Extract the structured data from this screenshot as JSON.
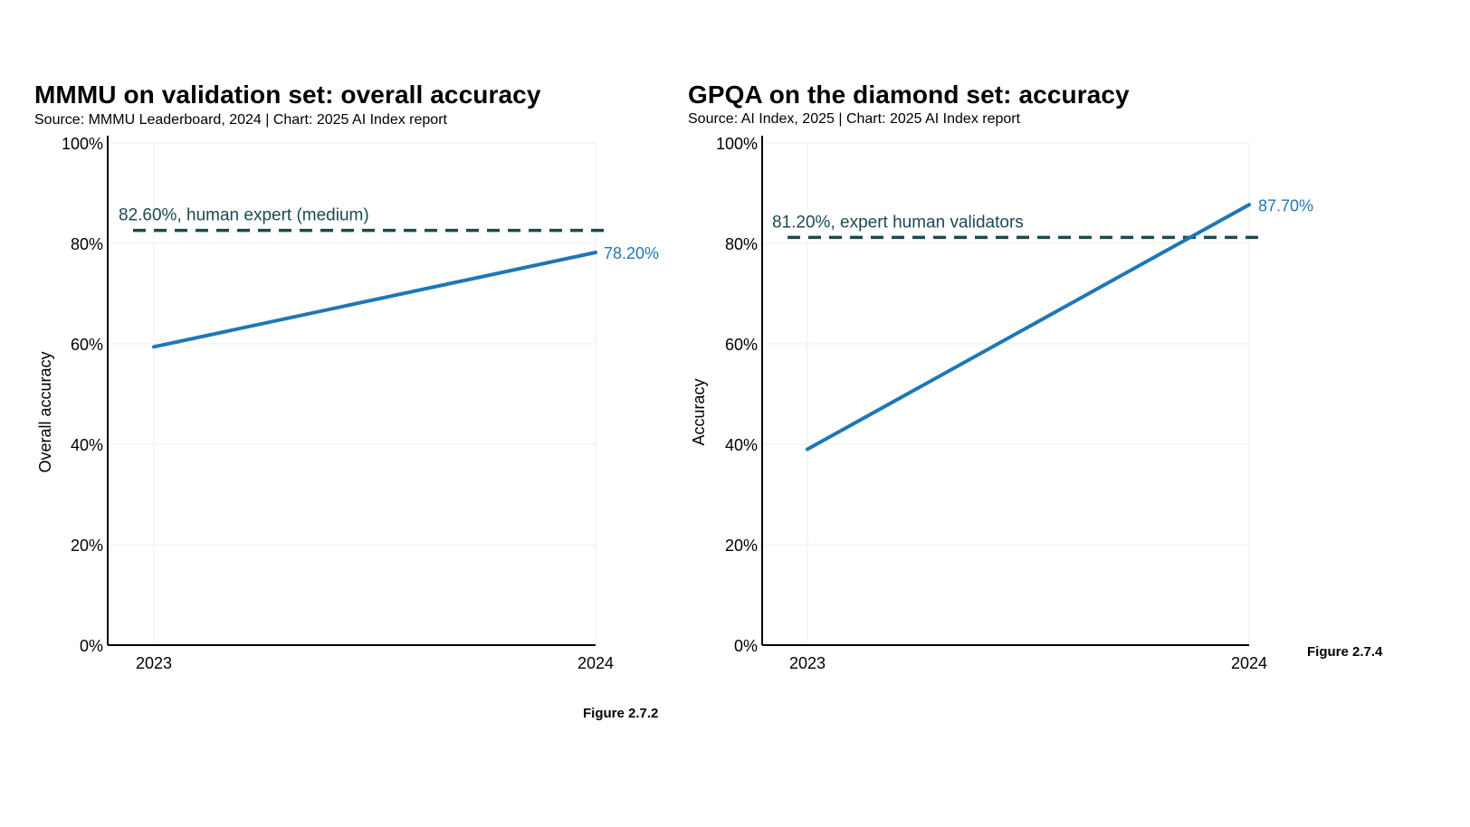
{
  "charts": [
    {
      "title": "MMMU on validation set: overall accuracy",
      "subtitle": "Source: MMMU Leaderboard, 2024 | Chart: 2025 AI Index report",
      "figure_label": "Figure 2.7.2"
    },
    {
      "title": "GPQA on the diamond set: accuracy",
      "subtitle": "Source: AI Index, 2025 | Chart: 2025 AI Index report",
      "figure_label": "Figure 2.7.4"
    }
  ],
  "colors": {
    "series": "#1f77b4",
    "reference": "#1d4a4f",
    "grid": "#ececec",
    "axis": "#000000"
  },
  "chart_data": [
    {
      "type": "line",
      "title": "MMMU on validation set: overall accuracy",
      "xlabel": "",
      "ylabel": "Overall accuracy",
      "x": [
        "2023",
        "2024"
      ],
      "series": [
        {
          "values": [
            59.4,
            78.2
          ]
        }
      ],
      "end_label": "78.20%",
      "reference_line": {
        "value": 82.6,
        "label": "82.60%, human expert (medium)"
      },
      "ylim": [
        0,
        100
      ],
      "yticks": [
        "0%",
        "20%",
        "40%",
        "60%",
        "80%",
        "100%"
      ],
      "tick_values": [
        0,
        20,
        40,
        60,
        80,
        100
      ],
      "grid": true,
      "legend": "none"
    },
    {
      "type": "line",
      "title": "GPQA on the diamond set: accuracy",
      "xlabel": "",
      "ylabel": "Accuracy",
      "x": [
        "2023",
        "2024"
      ],
      "series": [
        {
          "values": [
            39.0,
            87.7
          ]
        }
      ],
      "end_label": "87.70%",
      "reference_line": {
        "value": 81.2,
        "label": "81.20%, expert human validators"
      },
      "ylim": [
        0,
        100
      ],
      "yticks": [
        "0%",
        "20%",
        "40%",
        "60%",
        "80%",
        "100%"
      ],
      "tick_values": [
        0,
        20,
        40,
        60,
        80,
        100
      ],
      "grid": true,
      "legend": "none"
    }
  ]
}
